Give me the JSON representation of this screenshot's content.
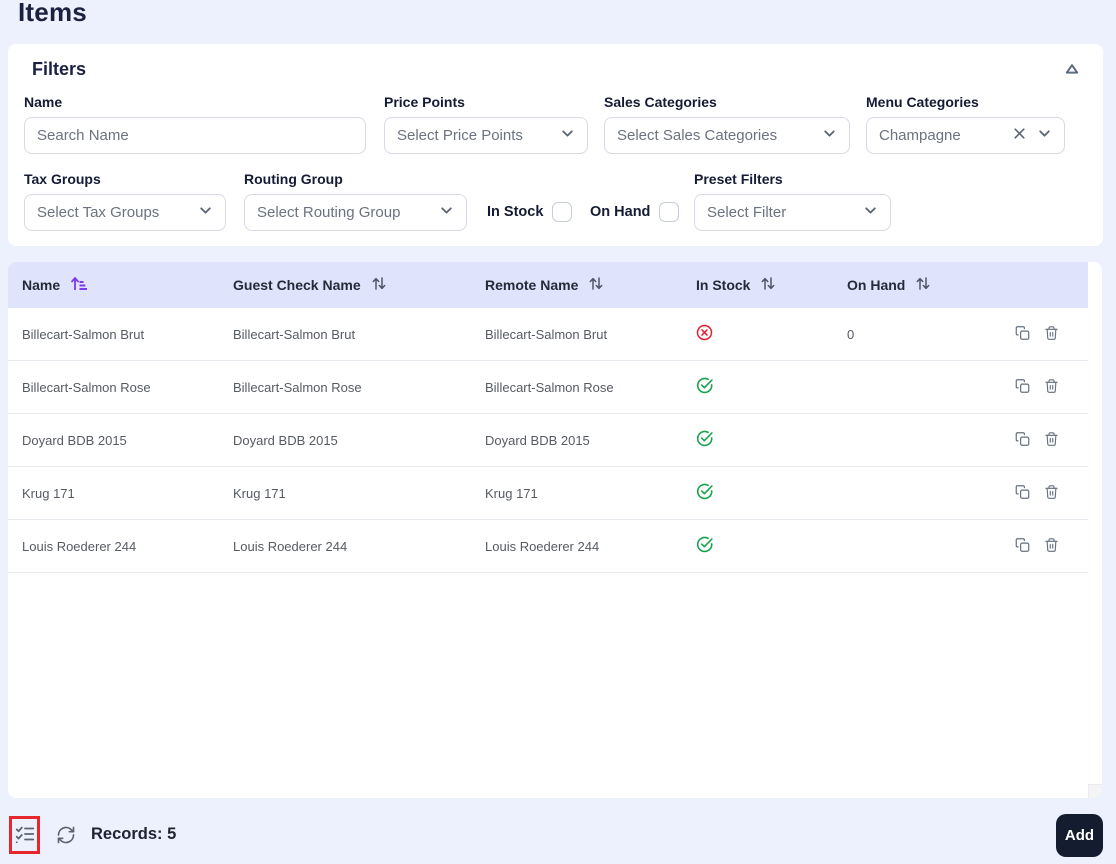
{
  "page": {
    "title": "Items"
  },
  "filters": {
    "title": "Filters",
    "name": {
      "label": "Name",
      "placeholder": "Search Name",
      "value": ""
    },
    "price_points": {
      "label": "Price Points",
      "display": "Select Price Points"
    },
    "sales_categories": {
      "label": "Sales Categories",
      "display": "Select Sales Categories"
    },
    "menu_categories": {
      "label": "Menu Categories",
      "display": "Champagne"
    },
    "tax_groups": {
      "label": "Tax Groups",
      "display": "Select Tax Groups"
    },
    "routing_group": {
      "label": "Routing Group",
      "display": "Select Routing Group"
    },
    "in_stock": {
      "label": "In Stock",
      "checked": false
    },
    "on_hand": {
      "label": "On Hand",
      "checked": false
    },
    "preset_filters": {
      "label": "Preset Filters",
      "display": "Select Filter"
    }
  },
  "table": {
    "columns": [
      {
        "label": "Name",
        "sorted": "ascending"
      },
      {
        "label": "Guest Check Name",
        "sorted": "none"
      },
      {
        "label": "Remote Name",
        "sorted": "none"
      },
      {
        "label": "In Stock",
        "sorted": "none"
      },
      {
        "label": "On Hand",
        "sorted": "none"
      }
    ],
    "rows": [
      {
        "name": "Billecart-Salmon Brut",
        "guest_check_name": "Billecart-Salmon Brut",
        "remote_name": "Billecart-Salmon Brut",
        "stock_state": "out-of-stock",
        "on_hand": "0"
      },
      {
        "name": "Billecart-Salmon Rose",
        "guest_check_name": "Billecart-Salmon Rose",
        "remote_name": "Billecart-Salmon Rose",
        "stock_state": "in-stock",
        "on_hand": ""
      },
      {
        "name": "Doyard BDB 2015",
        "guest_check_name": "Doyard BDB 2015",
        "remote_name": "Doyard BDB 2015",
        "stock_state": "in-stock",
        "on_hand": ""
      },
      {
        "name": "Krug 171",
        "guest_check_name": "Krug 171",
        "remote_name": "Krug 171",
        "stock_state": "in-stock",
        "on_hand": ""
      },
      {
        "name": "Louis Roederer 244",
        "guest_check_name": "Louis Roederer 244",
        "remote_name": "Louis Roederer 244",
        "stock_state": "in-stock",
        "on_hand": ""
      }
    ]
  },
  "footer": {
    "records": "Records: 5",
    "add_label": "Add"
  },
  "colors": {
    "page_bg": "#edf0fd",
    "header_bg": "#dfe3fb",
    "sort_active_purple": "#7c3aed",
    "in_stock_green": "#16a34a",
    "out_of_stock_red": "#e5202e",
    "highlight_red": "#e8272d",
    "add_button_bg": "#141c2f"
  }
}
